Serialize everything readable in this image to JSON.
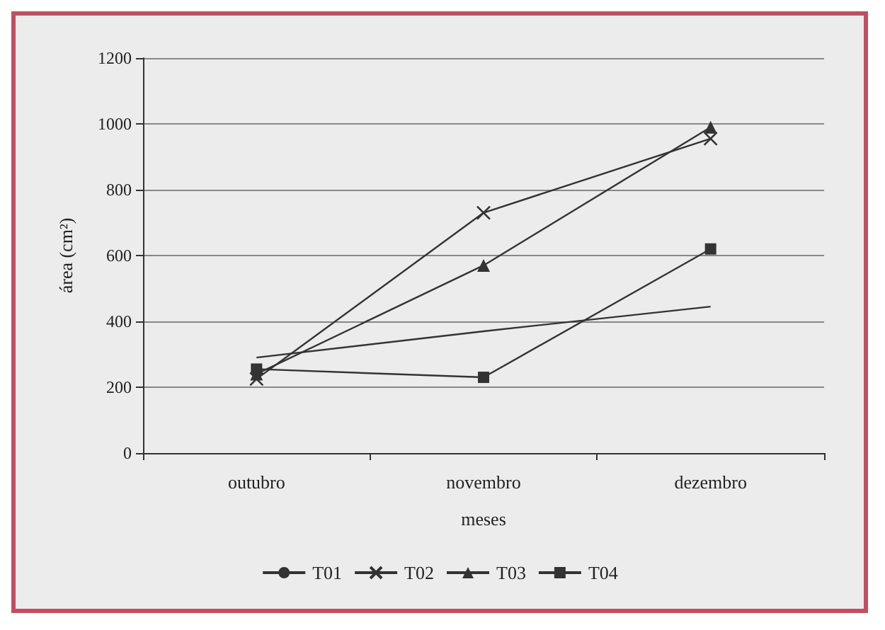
{
  "chart_data": {
    "type": "line",
    "xlabel": "meses",
    "ylabel": "área (cm²)",
    "categories": [
      "outubro",
      "novembro",
      "dezembro"
    ],
    "series": [
      {
        "name": "T01",
        "color": "#333333",
        "marker": "none",
        "values": [
          290,
          370,
          445
        ]
      },
      {
        "name": "T02",
        "color": "#333333",
        "marker": "cross",
        "values": [
          225,
          730,
          955
        ]
      },
      {
        "name": "T03",
        "color": "#333333",
        "marker": "triangle",
        "values": [
          240,
          570,
          990
        ]
      },
      {
        "name": "T04",
        "color": "#333333",
        "marker": "square",
        "values": [
          255,
          230,
          620
        ]
      }
    ],
    "ylim": [
      0,
      1200
    ],
    "yticks": [
      0,
      200,
      400,
      600,
      800,
      1000,
      1200
    ],
    "grid": "y",
    "legend": "bottom",
    "line_style": "solid"
  }
}
